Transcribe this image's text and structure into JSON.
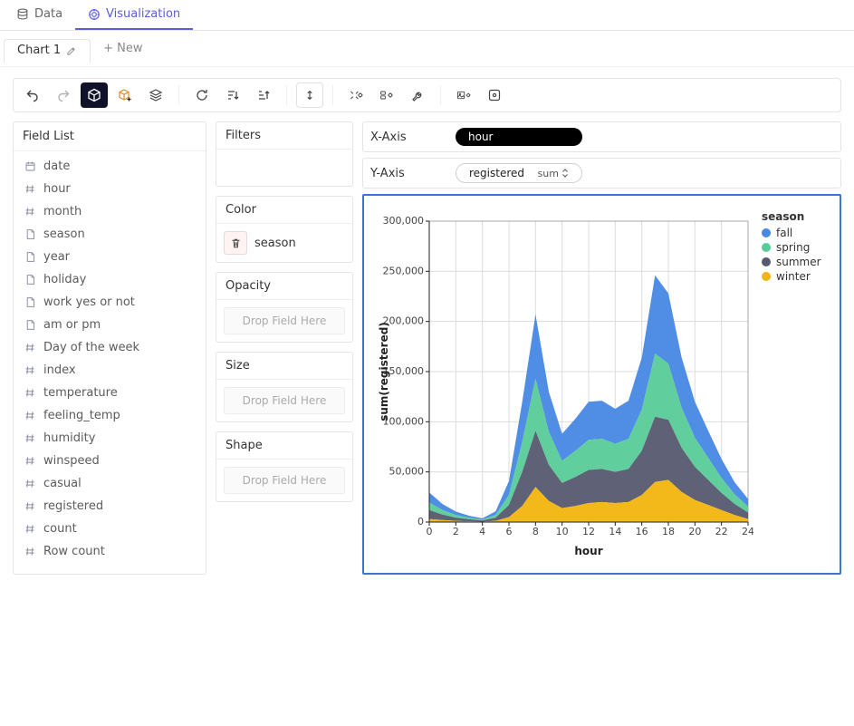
{
  "top_tabs": {
    "data": "Data",
    "viz": "Visualization"
  },
  "chart_tabs": {
    "chart1": "Chart 1",
    "new": "+ New"
  },
  "fieldlist": {
    "title": "Field List",
    "items": [
      {
        "label": "date",
        "kind": "date"
      },
      {
        "label": "hour",
        "kind": "number"
      },
      {
        "label": "month",
        "kind": "number"
      },
      {
        "label": "season",
        "kind": "text"
      },
      {
        "label": "year",
        "kind": "text"
      },
      {
        "label": "holiday",
        "kind": "text"
      },
      {
        "label": "work yes or not",
        "kind": "text"
      },
      {
        "label": "am or pm",
        "kind": "text"
      },
      {
        "label": "Day of the week",
        "kind": "number"
      },
      {
        "label": "index",
        "kind": "number"
      },
      {
        "label": "temperature",
        "kind": "number"
      },
      {
        "label": "feeling_temp",
        "kind": "number"
      },
      {
        "label": "humidity",
        "kind": "number"
      },
      {
        "label": "winspeed",
        "kind": "number"
      },
      {
        "label": "casual",
        "kind": "number"
      },
      {
        "label": "registered",
        "kind": "number"
      },
      {
        "label": "count",
        "kind": "number"
      },
      {
        "label": "Row count",
        "kind": "number"
      }
    ]
  },
  "mid": {
    "filters": "Filters",
    "color_title": "Color",
    "color_field": "season",
    "opacity": "Opacity",
    "size": "Size",
    "shape": "Shape",
    "drop_placeholder": "Drop Field Here"
  },
  "axes": {
    "x_label": "X-Axis",
    "y_label": "Y-Axis",
    "x_field": "hour",
    "y_field": "registered",
    "y_agg": "sum"
  },
  "chart": {
    "type": "area-stacked",
    "x_axis_title": "hour",
    "y_axis_title": "sum(registered)",
    "xlim": [
      0,
      24
    ],
    "xtick_step": 2,
    "ylim": [
      0,
      300000
    ],
    "ytick_step": 50000,
    "ytick_labels": [
      "0",
      "50,000",
      "100,000",
      "150,000",
      "200,000",
      "250,000",
      "300,000"
    ],
    "hours": [
      0,
      1,
      2,
      3,
      4,
      5,
      6,
      7,
      8,
      9,
      10,
      11,
      12,
      13,
      14,
      15,
      16,
      17,
      18,
      19,
      20,
      21,
      22,
      23,
      24
    ],
    "series": [
      {
        "name": "winter",
        "color": "#f2b50e",
        "values": [
          3000,
          2000,
          1200,
          800,
          400,
          1200,
          5000,
          16000,
          35000,
          21000,
          14000,
          16000,
          19000,
          20000,
          19000,
          20000,
          27000,
          40000,
          42000,
          30000,
          22000,
          17000,
          12000,
          7000,
          3000
        ]
      },
      {
        "name": "summer",
        "color": "#56596f",
        "values": [
          9000,
          5500,
          3200,
          2000,
          1200,
          3200,
          12000,
          34000,
          56000,
          36000,
          25000,
          29000,
          33000,
          33000,
          31000,
          33000,
          44000,
          65000,
          60000,
          44000,
          33000,
          25000,
          17000,
          11000,
          6500
        ]
      },
      {
        "name": "spring",
        "color": "#57cc98",
        "values": [
          7500,
          4500,
          2600,
          1500,
          900,
          2700,
          10000,
          30000,
          52000,
          33000,
          22000,
          26000,
          30000,
          30000,
          28000,
          30000,
          41000,
          63000,
          56000,
          40000,
          29000,
          22000,
          15000,
          9500,
          6000
        ]
      },
      {
        "name": "fall",
        "color": "#4688e3",
        "values": [
          10000,
          6000,
          3500,
          2000,
          1200,
          3600,
          14000,
          40000,
          64000,
          40000,
          27000,
          32000,
          38000,
          38000,
          35000,
          38000,
          52000,
          78000,
          70000,
          50000,
          36000,
          27000,
          19000,
          12000,
          7500
        ]
      }
    ],
    "legend_title": "season",
    "legend_order": [
      "fall",
      "spring",
      "summer",
      "winter"
    ],
    "legend_colors": {
      "fall": "#4688e3",
      "spring": "#57cc98",
      "summer": "#56596f",
      "winter": "#f2b50e"
    },
    "background_color": "#ffffff",
    "grid_color": "#dcdcdc",
    "border_color": "#3b74d3"
  }
}
